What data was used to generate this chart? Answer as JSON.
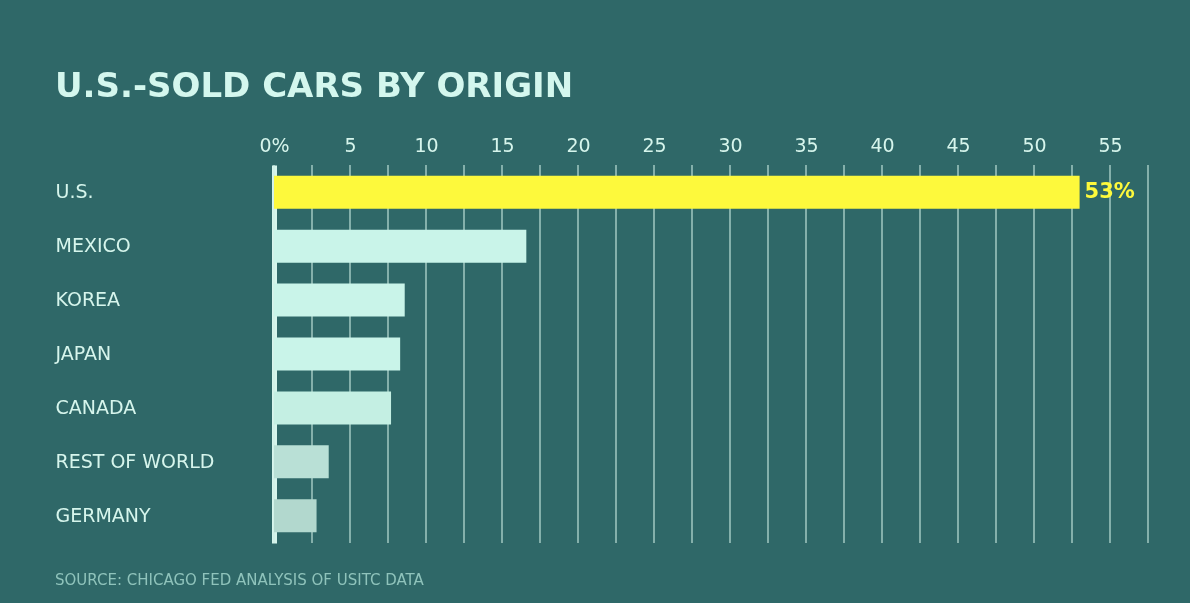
{
  "chart_data": {
    "type": "bar",
    "orientation": "horizontal",
    "title": "U.S.-SOLD CARS BY ORIGIN",
    "categories": [
      "U.S.",
      "MEXICO",
      "KOREA",
      "JAPAN",
      "CANADA",
      "REST OF WORLD",
      "GERMANY"
    ],
    "values": [
      53,
      16.6,
      8.6,
      8.3,
      7.7,
      3.6,
      2.8
    ],
    "colors": [
      "#fdf93c",
      "#c9f4e9",
      "#c9f4e9",
      "#c9f4e9",
      "#c4efe3",
      "#b9e0d6",
      "#b2d8ce"
    ],
    "value_labels": [
      "53%",
      null,
      null,
      null,
      null,
      null,
      null
    ],
    "xlim": [
      0,
      57.5
    ],
    "xticks": [
      {
        "value": 0,
        "label": "0%"
      },
      {
        "value": 2.5,
        "label": null
      },
      5,
      {
        "value": 7.5,
        "label": null
      },
      10,
      {
        "value": 12.5,
        "label": null
      },
      15,
      {
        "value": 17.5,
        "label": null
      },
      20,
      {
        "value": 22.5,
        "label": null
      },
      25,
      {
        "value": 27.5,
        "label": null
      },
      30,
      {
        "value": 32.5,
        "label": null
      },
      35,
      {
        "value": 37.5,
        "label": null
      },
      40,
      {
        "value": 42.5,
        "label": null
      },
      45,
      {
        "value": 47.5,
        "label": null
      },
      50,
      {
        "value": 52.5,
        "label": null
      },
      55,
      {
        "value": 57.5,
        "label": null
      }
    ],
    "grid": "x",
    "annotations": [
      "SOURCE: CHICAGO FED ANALYSIS OF USITC DATA"
    ]
  }
}
